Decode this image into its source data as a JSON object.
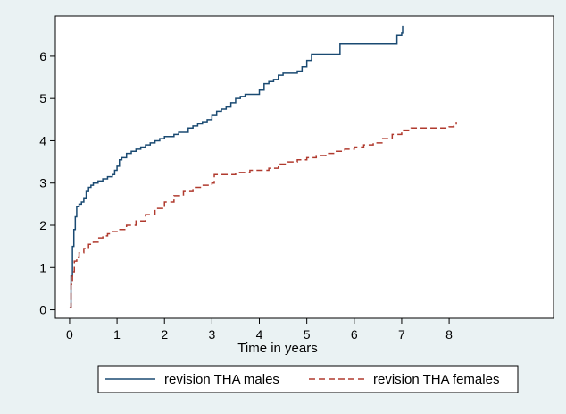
{
  "chart_data": {
    "type": "line",
    "title": "",
    "xlabel": "Time in years",
    "ylabel": "",
    "xlim": [
      -0.3,
      10.2
    ],
    "ylim": [
      -0.2,
      6.95
    ],
    "xticks": [
      0,
      1,
      2,
      3,
      4,
      5,
      6,
      7,
      8
    ],
    "yticks": [
      0,
      1,
      2,
      3,
      4,
      5,
      6
    ],
    "grid": false,
    "legend": "bottom",
    "colors": {
      "background": "#eaf2f3",
      "plot": "#ffffff",
      "males": "#1a4a72",
      "females": "#b03a2e"
    },
    "series": [
      {
        "name": "revision THA males",
        "style": "solid",
        "x": [
          0,
          0.03,
          0.06,
          0.09,
          0.12,
          0.15,
          0.2,
          0.25,
          0.3,
          0.35,
          0.4,
          0.45,
          0.5,
          0.55,
          0.6,
          0.7,
          0.8,
          0.9,
          0.95,
          1.0,
          1.05,
          1.1,
          1.2,
          1.3,
          1.4,
          1.5,
          1.6,
          1.7,
          1.8,
          1.9,
          2.0,
          2.1,
          2.2,
          2.3,
          2.4,
          2.5,
          2.6,
          2.7,
          2.8,
          2.9,
          3.0,
          3.1,
          3.2,
          3.3,
          3.4,
          3.5,
          3.6,
          3.7,
          3.8,
          3.9,
          4.0,
          4.1,
          4.2,
          4.3,
          4.4,
          4.5,
          4.6,
          4.7,
          4.8,
          4.9,
          5.0,
          5.1,
          5.2,
          5.5,
          5.7,
          5.8,
          6.0,
          6.5,
          6.9,
          7.0,
          7.02
        ],
        "y": [
          0.05,
          0.8,
          1.5,
          1.9,
          2.2,
          2.45,
          2.5,
          2.55,
          2.65,
          2.8,
          2.9,
          2.95,
          3.0,
          3.0,
          3.05,
          3.1,
          3.15,
          3.2,
          3.3,
          3.4,
          3.55,
          3.6,
          3.7,
          3.75,
          3.8,
          3.85,
          3.9,
          3.95,
          4.0,
          4.05,
          4.1,
          4.1,
          4.15,
          4.2,
          4.2,
          4.3,
          4.35,
          4.4,
          4.45,
          4.5,
          4.6,
          4.7,
          4.75,
          4.8,
          4.9,
          5.0,
          5.05,
          5.1,
          5.1,
          5.1,
          5.2,
          5.35,
          5.4,
          5.45,
          5.55,
          5.6,
          5.6,
          5.6,
          5.65,
          5.75,
          5.9,
          6.05,
          6.05,
          6.05,
          6.3,
          6.3,
          6.3,
          6.3,
          6.5,
          6.55,
          6.72
        ]
      },
      {
        "name": "revision THA females",
        "style": "dashed",
        "x": [
          0,
          0.03,
          0.06,
          0.1,
          0.15,
          0.2,
          0.3,
          0.4,
          0.5,
          0.6,
          0.7,
          0.8,
          0.9,
          1.0,
          1.2,
          1.4,
          1.6,
          1.8,
          2.0,
          2.2,
          2.4,
          2.6,
          2.8,
          3.0,
          3.05,
          3.2,
          3.5,
          3.8,
          4.0,
          4.2,
          4.4,
          4.6,
          4.8,
          5.0,
          5.2,
          5.4,
          5.6,
          5.8,
          6.0,
          6.2,
          6.4,
          6.6,
          6.8,
          7.0,
          7.2,
          7.5,
          8.0,
          8.1,
          8.15
        ],
        "y": [
          0.05,
          0.6,
          0.9,
          1.15,
          1.25,
          1.35,
          1.45,
          1.55,
          1.6,
          1.7,
          1.75,
          1.8,
          1.85,
          1.9,
          2.0,
          2.1,
          2.25,
          2.4,
          2.55,
          2.7,
          2.8,
          2.9,
          2.95,
          3.0,
          3.2,
          3.2,
          3.25,
          3.3,
          3.3,
          3.35,
          3.45,
          3.5,
          3.55,
          3.6,
          3.65,
          3.7,
          3.75,
          3.8,
          3.85,
          3.9,
          3.95,
          4.05,
          4.15,
          4.25,
          4.3,
          4.3,
          4.33,
          4.35,
          4.45
        ]
      }
    ]
  }
}
